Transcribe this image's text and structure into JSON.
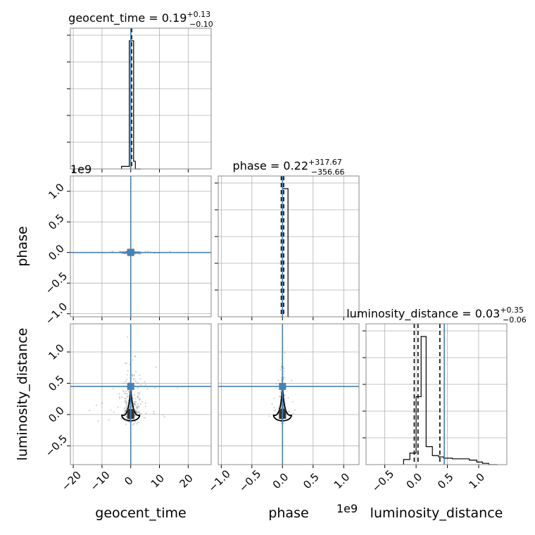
{
  "chart_data": {
    "type": "corner",
    "parameters": [
      "geocent_time",
      "phase",
      "luminosity_distance"
    ],
    "titles": {
      "geocent_time": {
        "name": "geocent_time",
        "median": "0.19",
        "plus": "+0.13",
        "minus": "−0.10"
      },
      "phase": {
        "name": "phase",
        "median": "0.22",
        "plus": "+317.67",
        "minus": "−356.66"
      },
      "luminosity_distance": {
        "name": "luminosity_distance",
        "median": "0.03",
        "plus": "+0.35",
        "minus": "−0.06"
      }
    },
    "axis_labels": {
      "x": [
        "geocent_time",
        "phase",
        "luminosity_distance"
      ],
      "y": [
        "phase",
        "luminosity_distance"
      ]
    },
    "offset_labels": {
      "phase_y": "1e9",
      "phase_x": "1e9"
    },
    "ranges": {
      "geocent_time": [
        -21,
        28
      ],
      "phase": [
        -1.05,
        1.25
      ],
      "luminosity_distance": [
        -0.8,
        1.45
      ]
    },
    "ticks": {
      "geocent_time": [
        -20,
        -10,
        0,
        10,
        20
      ],
      "phase": [
        -1.0,
        -0.5,
        0.0,
        0.5,
        1.0
      ],
      "luminosity_distance": [
        -0.5,
        0.0,
        0.5,
        1.0
      ]
    },
    "tick_labels": {
      "geocent_time": [
        "−20",
        "−10",
        "0",
        "10",
        "20"
      ],
      "phase": [
        "−1.0",
        "−0.5",
        "0.0",
        "0.5",
        "1.0"
      ],
      "luminosity_distance": [
        "−0.5",
        "0.0",
        "0.5",
        "1.0"
      ]
    },
    "truths": {
      "geocent_time": 0.0,
      "phase": 0.0,
      "luminosity_distance": 0.45
    },
    "quantiles": {
      "geocent_time": [
        0.09,
        0.19,
        0.32
      ],
      "phase": [
        -356.66,
        0.22,
        317.67
      ],
      "luminosity_distance": [
        -0.03,
        0.03,
        0.38
      ]
    },
    "histograms": {
      "geocent_time": {
        "edges": [
          -3.2,
          -1.0,
          -0.5,
          1.0,
          1.6,
          3.5
        ],
        "counts": [
          0.02,
          0.02,
          1.0,
          0.06,
          0.0
        ]
      },
      "phase": {
        "edges": [
          -0.03,
          0.0,
          0.09,
          0.11
        ],
        "counts": [
          0.0,
          1.0,
          0.0
        ]
      },
      "luminosity_distance": {
        "edges": [
          -0.2,
          -0.1,
          0.0,
          0.08,
          0.16,
          0.26,
          0.36,
          0.44,
          0.58,
          0.7,
          0.85,
          0.97,
          1.06,
          1.16,
          1.3
        ],
        "counts": [
          0.04,
          0.09,
          0.53,
          1.0,
          0.14,
          0.07,
          0.06,
          0.05,
          0.045,
          0.045,
          0.035,
          0.02,
          0.01,
          0.0
        ]
      }
    },
    "colors": {
      "truth": "#4682b4",
      "hist": "#000000",
      "grid": "#b0b0b0",
      "scatter": "#808080",
      "contour": "#000000"
    },
    "grid": true
  }
}
